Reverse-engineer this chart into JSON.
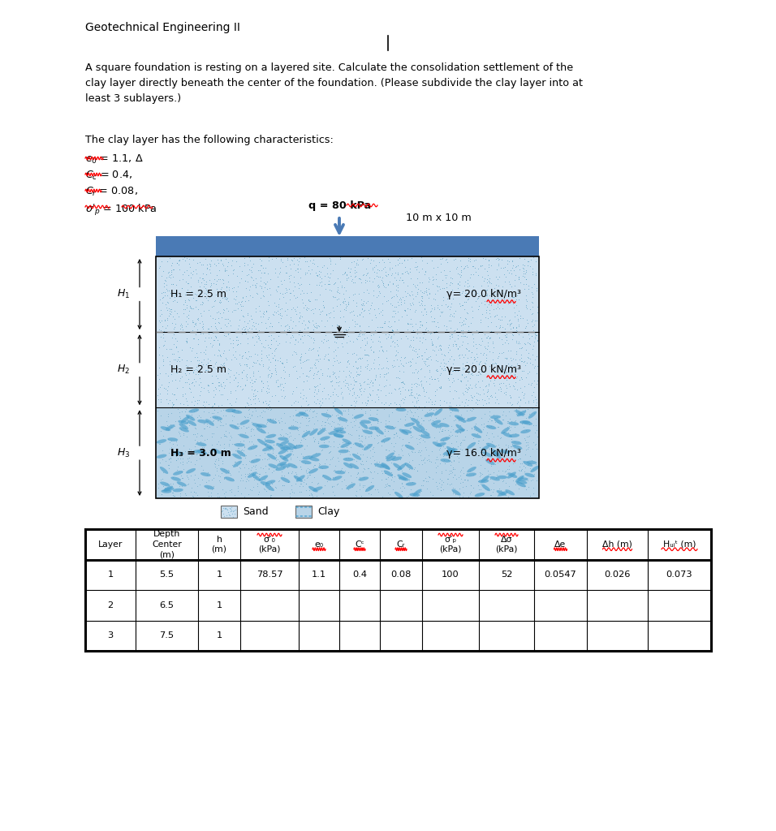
{
  "title": "Geotechnical Engineering II",
  "problem_text": "A square foundation is resting on a layered site. Calculate the consolidation settlement of the\nclay layer directly beneath the center of the foundation. (Please subdivide the clay layer into at\nleast 3 sublayers.)",
  "characteristics_title": "The clay layer has the following characteristics:",
  "q_label": "q = 80 kPa",
  "foundation_size": "10 m x 10 m",
  "sand_color": "#cce0f0",
  "clay_color": "#b8d4e8",
  "foundation_color": "#4a7ab5",
  "arrow_color": "#4a7ab5",
  "table_data": [
    [
      "1",
      "5.5",
      "1",
      "78.57",
      "1.1",
      "0.4",
      "0.08",
      "100",
      "52",
      "0.0547",
      "0.026",
      "0.073"
    ],
    [
      "2",
      "6.5",
      "1",
      "",
      "",
      "",
      "",
      "",
      "",
      "",
      "",
      ""
    ],
    [
      "3",
      "7.5",
      "1",
      "",
      "",
      "",
      "",
      "",
      "",
      "",
      "",
      ""
    ]
  ]
}
